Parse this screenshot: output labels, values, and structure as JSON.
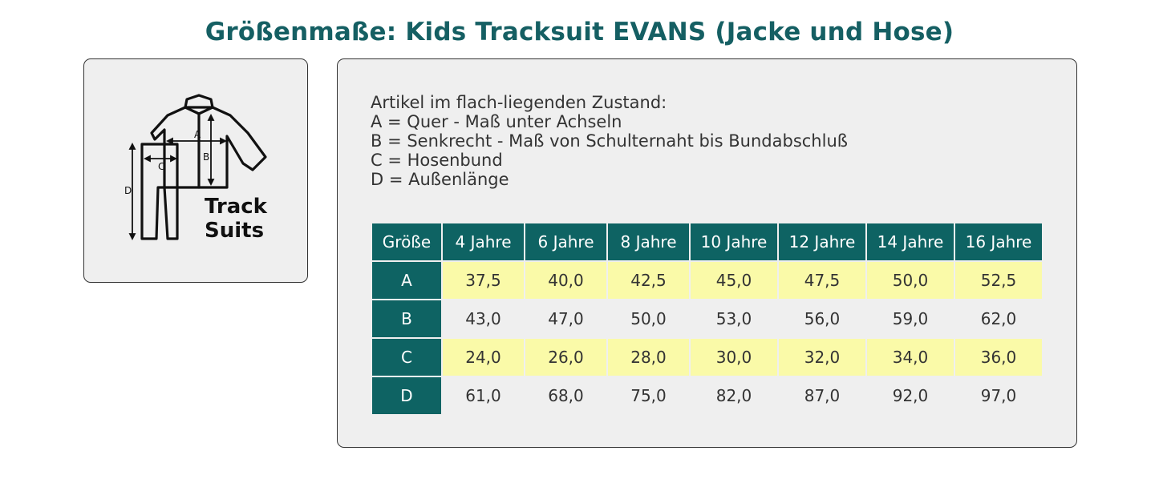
{
  "title": "Größenmaße: Kids Tracksuit EVANS (Jacke und Hose)",
  "icon": {
    "name": "tracksuit-icon",
    "label_a": "A",
    "label_b": "B",
    "label_c": "C",
    "label_d": "D",
    "caption_line1": "Track",
    "caption_line2": "Suits"
  },
  "description": {
    "line1": "Artikel im flach-liegenden Zustand:",
    "line2": "A = Quer - Maß unter Achseln",
    "line3": "B = Senkrecht - Maß von Schulternaht bis Bundabschluß",
    "line4": "C = Hosenbund",
    "line5": "D = Außenlänge"
  },
  "table": {
    "header": [
      "Größe",
      "4 Jahre",
      "6 Jahre",
      "8 Jahre",
      "10 Jahre",
      "12 Jahre",
      "14 Jahre",
      "16 Jahre"
    ],
    "rows": [
      {
        "label": "A",
        "values": [
          "37,5",
          "40,0",
          "42,5",
          "45,0",
          "47,5",
          "50,0",
          "52,5"
        ]
      },
      {
        "label": "B",
        "values": [
          "43,0",
          "47,0",
          "50,0",
          "53,0",
          "56,0",
          "59,0",
          "62,0"
        ]
      },
      {
        "label": "C",
        "values": [
          "24,0",
          "26,0",
          "28,0",
          "30,0",
          "32,0",
          "34,0",
          "36,0"
        ]
      },
      {
        "label": "D",
        "values": [
          "61,0",
          "68,0",
          "75,0",
          "82,0",
          "87,0",
          "92,0",
          "97,0"
        ]
      }
    ]
  },
  "colors": {
    "header_bg": "#0e6363",
    "title": "#155f63",
    "highlight_row": "#fafaa8",
    "panel_bg": "#efefef"
  }
}
